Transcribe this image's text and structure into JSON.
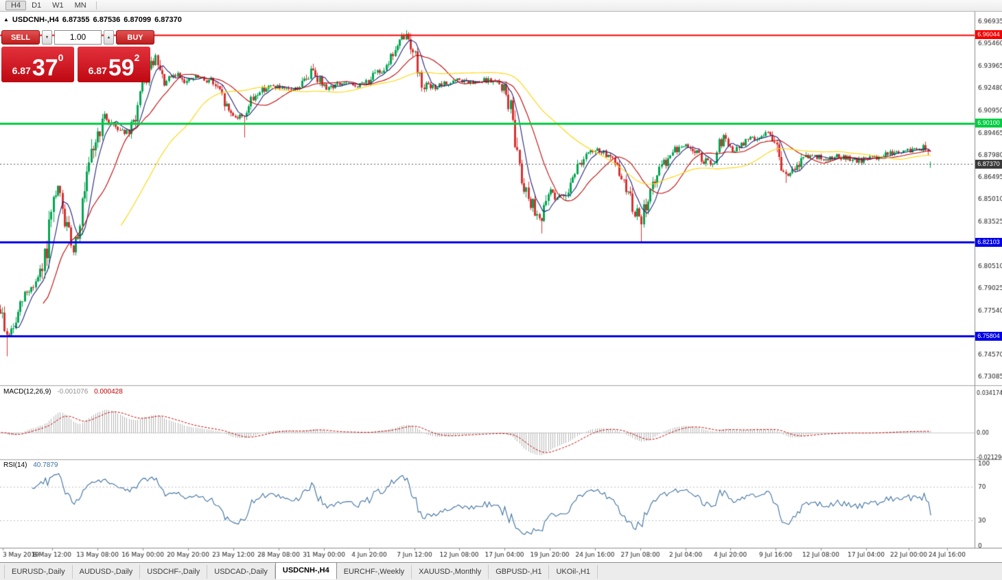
{
  "toolbar": {
    "timeframes": [
      "H4",
      "D1",
      "W1",
      "MN"
    ]
  },
  "chart_header": {
    "collapse": "▲",
    "symbol_period": "USDCNH-,H4",
    "open": "6.87355",
    "high": "6.87536",
    "low": "6.87099",
    "close": "6.87370"
  },
  "one_click": {
    "sell_label": "SELL",
    "buy_label": "BUY",
    "volume": "1.00",
    "spin_down": "▼",
    "spin_up": "▲",
    "bid": {
      "prefix": "6.87",
      "big": "37",
      "sup": "0"
    },
    "ask": {
      "prefix": "6.87",
      "big": "59",
      "sup": "2"
    }
  },
  "price_axis": {
    "ticks": [
      6.96935,
      6.9546,
      6.93965,
      6.9248,
      6.9095,
      6.89465,
      6.8798,
      6.86495,
      6.8501,
      6.83525,
      6.8051,
      6.79025,
      6.7754,
      6.7457,
      6.73085
    ]
  },
  "levels": [
    {
      "price": 6.96044,
      "label": "6.96044",
      "color": "#f40000",
      "width": 2
    },
    {
      "price": 6.901,
      "label": "6.90100",
      "color": "#00cd41",
      "width": 3
    },
    {
      "price": 6.82103,
      "label": "6.82103",
      "color": "#0000e8",
      "width": 3
    },
    {
      "price": 6.75804,
      "label": "6.75804",
      "color": "#0000e8",
      "width": 3
    }
  ],
  "bid_line": {
    "price": 6.8737,
    "label": "6.87370",
    "badge_color": "#3a3a3a"
  },
  "time_axis": {
    "labels": [
      "3 May 2019",
      "8 May 12:00",
      "13 May 08:00",
      "16 May 00:00",
      "20 May 20:00",
      "23 May 12:00",
      "28 May 08:00",
      "31 May 00:00",
      "4 Jun 20:00",
      "7 Jun 12:00",
      "12 Jun 08:00",
      "17 Jun 04:00",
      "19 Jun 20:00",
      "24 Jun 16:00",
      "27 Jun 08:00",
      "2 Jul 04:00",
      "4 Jul 20:00",
      "9 Jul 16:00",
      "12 Jul 08:00",
      "17 Jul 04:00",
      "22 Jul 00:00",
      "24 Jul 16:00"
    ],
    "positions": [
      4,
      76,
      142,
      208,
      274,
      340,
      406,
      472,
      538,
      604,
      669,
      735,
      801,
      867,
      933,
      999,
      1064,
      1130,
      1196,
      1262,
      1324,
      1380
    ]
  },
  "macd_panel": {
    "title": "MACD(12,26,9)",
    "value_main": "-0.001076",
    "value_signal": "0.000428",
    "axis_labels": [
      "0.034174",
      "0.00",
      "-0.021296"
    ]
  },
  "rsi_panel": {
    "title": "RSI(14)",
    "value": "40.7879",
    "axis_labels": [
      "100",
      "70",
      "30",
      "0"
    ],
    "levels": [
      70,
      30
    ]
  },
  "tabs": [
    "EURUSD-,Daily",
    "AUDUSD-,Daily",
    "USDCHF-,Daily",
    "USDCAD-,Daily",
    "USDCNH-,H4",
    "EURCHF-,Weekly",
    "XAUUSD-,Monthly",
    "GBPUSD-,H1",
    "UKOil-,H1"
  ],
  "chart_data": {
    "type": "candlestick",
    "symbol": "USDCNH-",
    "period": "H4",
    "ohlc_display": {
      "open": "6.87355",
      "high": "6.87536",
      "low": "6.87099",
      "close": "6.87370"
    },
    "price_range": [
      6.725,
      6.976
    ],
    "candles": 420,
    "spacing": 3.2333,
    "seed": 9,
    "noise": 0.0016,
    "up_color": "#00a651",
    "down_color": "#d93030",
    "last_candle": {
      "open": 6.87355,
      "high": 6.87536,
      "low": 6.87099,
      "close": 6.8737
    },
    "moving_averages": [
      {
        "period": 7,
        "color": "#20207e"
      },
      {
        "period": 20,
        "color": "#c00000"
      },
      {
        "period": 55,
        "color": "#ffd400"
      }
    ],
    "macd": {
      "fast": 12,
      "slow": 26,
      "signal": 9,
      "hist_color": "#b4b4b4",
      "signal_color": "#c00000"
    },
    "rsi": {
      "period": 14,
      "color": "#3b6fa0"
    },
    "waypoints": [
      [
        0,
        6.776
      ],
      [
        3,
        6.758
      ],
      [
        6,
        6.763
      ],
      [
        11,
        6.786
      ],
      [
        15,
        6.792
      ],
      [
        19,
        6.801
      ],
      [
        23,
        6.836
      ],
      [
        26,
        6.858
      ],
      [
        29,
        6.835
      ],
      [
        33,
        6.816
      ],
      [
        38,
        6.852
      ],
      [
        42,
        6.885
      ],
      [
        47,
        6.905
      ],
      [
        53,
        6.898
      ],
      [
        58,
        6.894
      ],
      [
        61,
        6.906
      ],
      [
        64,
        6.924
      ],
      [
        68,
        6.939
      ],
      [
        70,
        6.944
      ],
      [
        72,
        6.934
      ],
      [
        74,
        6.928
      ],
      [
        77,
        6.931
      ],
      [
        80,
        6.934
      ],
      [
        84,
        6.929
      ],
      [
        88,
        6.932
      ],
      [
        92,
        6.93
      ],
      [
        95,
        6.93
      ],
      [
        99,
        6.921
      ],
      [
        103,
        6.909
      ],
      [
        107,
        6.905
      ],
      [
        110,
        6.907
      ],
      [
        113,
        6.915
      ],
      [
        116,
        6.922
      ],
      [
        120,
        6.925
      ],
      [
        124,
        6.926
      ],
      [
        128,
        6.923
      ],
      [
        133,
        6.924
      ],
      [
        137,
        6.929
      ],
      [
        141,
        6.938
      ],
      [
        144,
        6.93
      ],
      [
        146,
        6.925
      ],
      [
        150,
        6.926
      ],
      [
        155,
        6.928
      ],
      [
        159,
        6.926
      ],
      [
        163,
        6.927
      ],
      [
        167,
        6.931
      ],
      [
        172,
        6.937
      ],
      [
        175,
        6.943
      ],
      [
        178,
        6.95
      ],
      [
        181,
        6.957
      ],
      [
        183,
        6.96
      ],
      [
        186,
        6.952
      ],
      [
        188,
        6.938
      ],
      [
        190,
        6.928
      ],
      [
        194,
        6.925
      ],
      [
        198,
        6.926
      ],
      [
        202,
        6.928
      ],
      [
        207,
        6.93
      ],
      [
        211,
        6.928
      ],
      [
        215,
        6.928
      ],
      [
        219,
        6.93
      ],
      [
        222,
        6.929
      ],
      [
        225,
        6.927
      ],
      [
        227,
        6.924
      ],
      [
        229,
        6.915
      ],
      [
        231,
        6.903
      ],
      [
        233,
        6.884
      ],
      [
        235,
        6.866
      ],
      [
        238,
        6.852
      ],
      [
        240,
        6.846
      ],
      [
        242,
        6.84
      ],
      [
        244,
        6.837
      ],
      [
        246,
        6.846
      ],
      [
        248,
        6.857
      ],
      [
        250,
        6.852
      ],
      [
        253,
        6.851
      ],
      [
        256,
        6.858
      ],
      [
        258,
        6.867
      ],
      [
        261,
        6.874
      ],
      [
        264,
        6.879
      ],
      [
        267,
        6.882
      ],
      [
        270,
        6.883
      ],
      [
        273,
        6.88
      ],
      [
        276,
        6.875
      ],
      [
        279,
        6.868
      ],
      [
        281,
        6.861
      ],
      [
        284,
        6.85
      ],
      [
        286,
        6.842
      ],
      [
        288,
        6.838
      ],
      [
        289,
        6.832
      ],
      [
        290,
        6.843
      ],
      [
        292,
        6.852
      ],
      [
        295,
        6.862
      ],
      [
        298,
        6.871
      ],
      [
        301,
        6.878
      ],
      [
        304,
        6.883
      ],
      [
        307,
        6.885
      ],
      [
        310,
        6.886
      ],
      [
        313,
        6.882
      ],
      [
        316,
        6.877
      ],
      [
        319,
        6.874
      ],
      [
        322,
        6.873
      ],
      [
        324,
        6.884
      ],
      [
        326,
        6.893
      ],
      [
        328,
        6.886
      ],
      [
        330,
        6.881
      ],
      [
        333,
        6.885
      ],
      [
        336,
        6.889
      ],
      [
        339,
        6.891
      ],
      [
        342,
        6.892
      ],
      [
        345,
        6.894
      ],
      [
        347,
        6.8955
      ],
      [
        349,
        6.888
      ],
      [
        352,
        6.869
      ],
      [
        355,
        6.866
      ],
      [
        357,
        6.868
      ],
      [
        360,
        6.874
      ],
      [
        363,
        6.879
      ],
      [
        366,
        6.88
      ],
      [
        370,
        6.877
      ],
      [
        374,
        6.878
      ],
      [
        378,
        6.879
      ],
      [
        382,
        6.877
      ],
      [
        386,
        6.8755
      ],
      [
        390,
        6.877
      ],
      [
        394,
        6.878
      ],
      [
        398,
        6.88
      ],
      [
        402,
        6.881
      ],
      [
        406,
        6.882
      ],
      [
        410,
        6.8825
      ],
      [
        413,
        6.884
      ],
      [
        416,
        6.8845
      ],
      [
        418,
        6.88
      ],
      [
        419,
        6.8737
      ]
    ],
    "spikes": [
      {
        "i": 3,
        "low": 6.7445
      },
      {
        "i": 70,
        "high": 6.948
      },
      {
        "i": 110,
        "low": 6.8915
      },
      {
        "i": 141,
        "high": 6.941
      },
      {
        "i": 183,
        "high": 6.9635
      },
      {
        "i": 244,
        "low": 6.827
      },
      {
        "i": 289,
        "low": 6.8205
      },
      {
        "i": 354,
        "low": 6.861
      }
    ]
  }
}
